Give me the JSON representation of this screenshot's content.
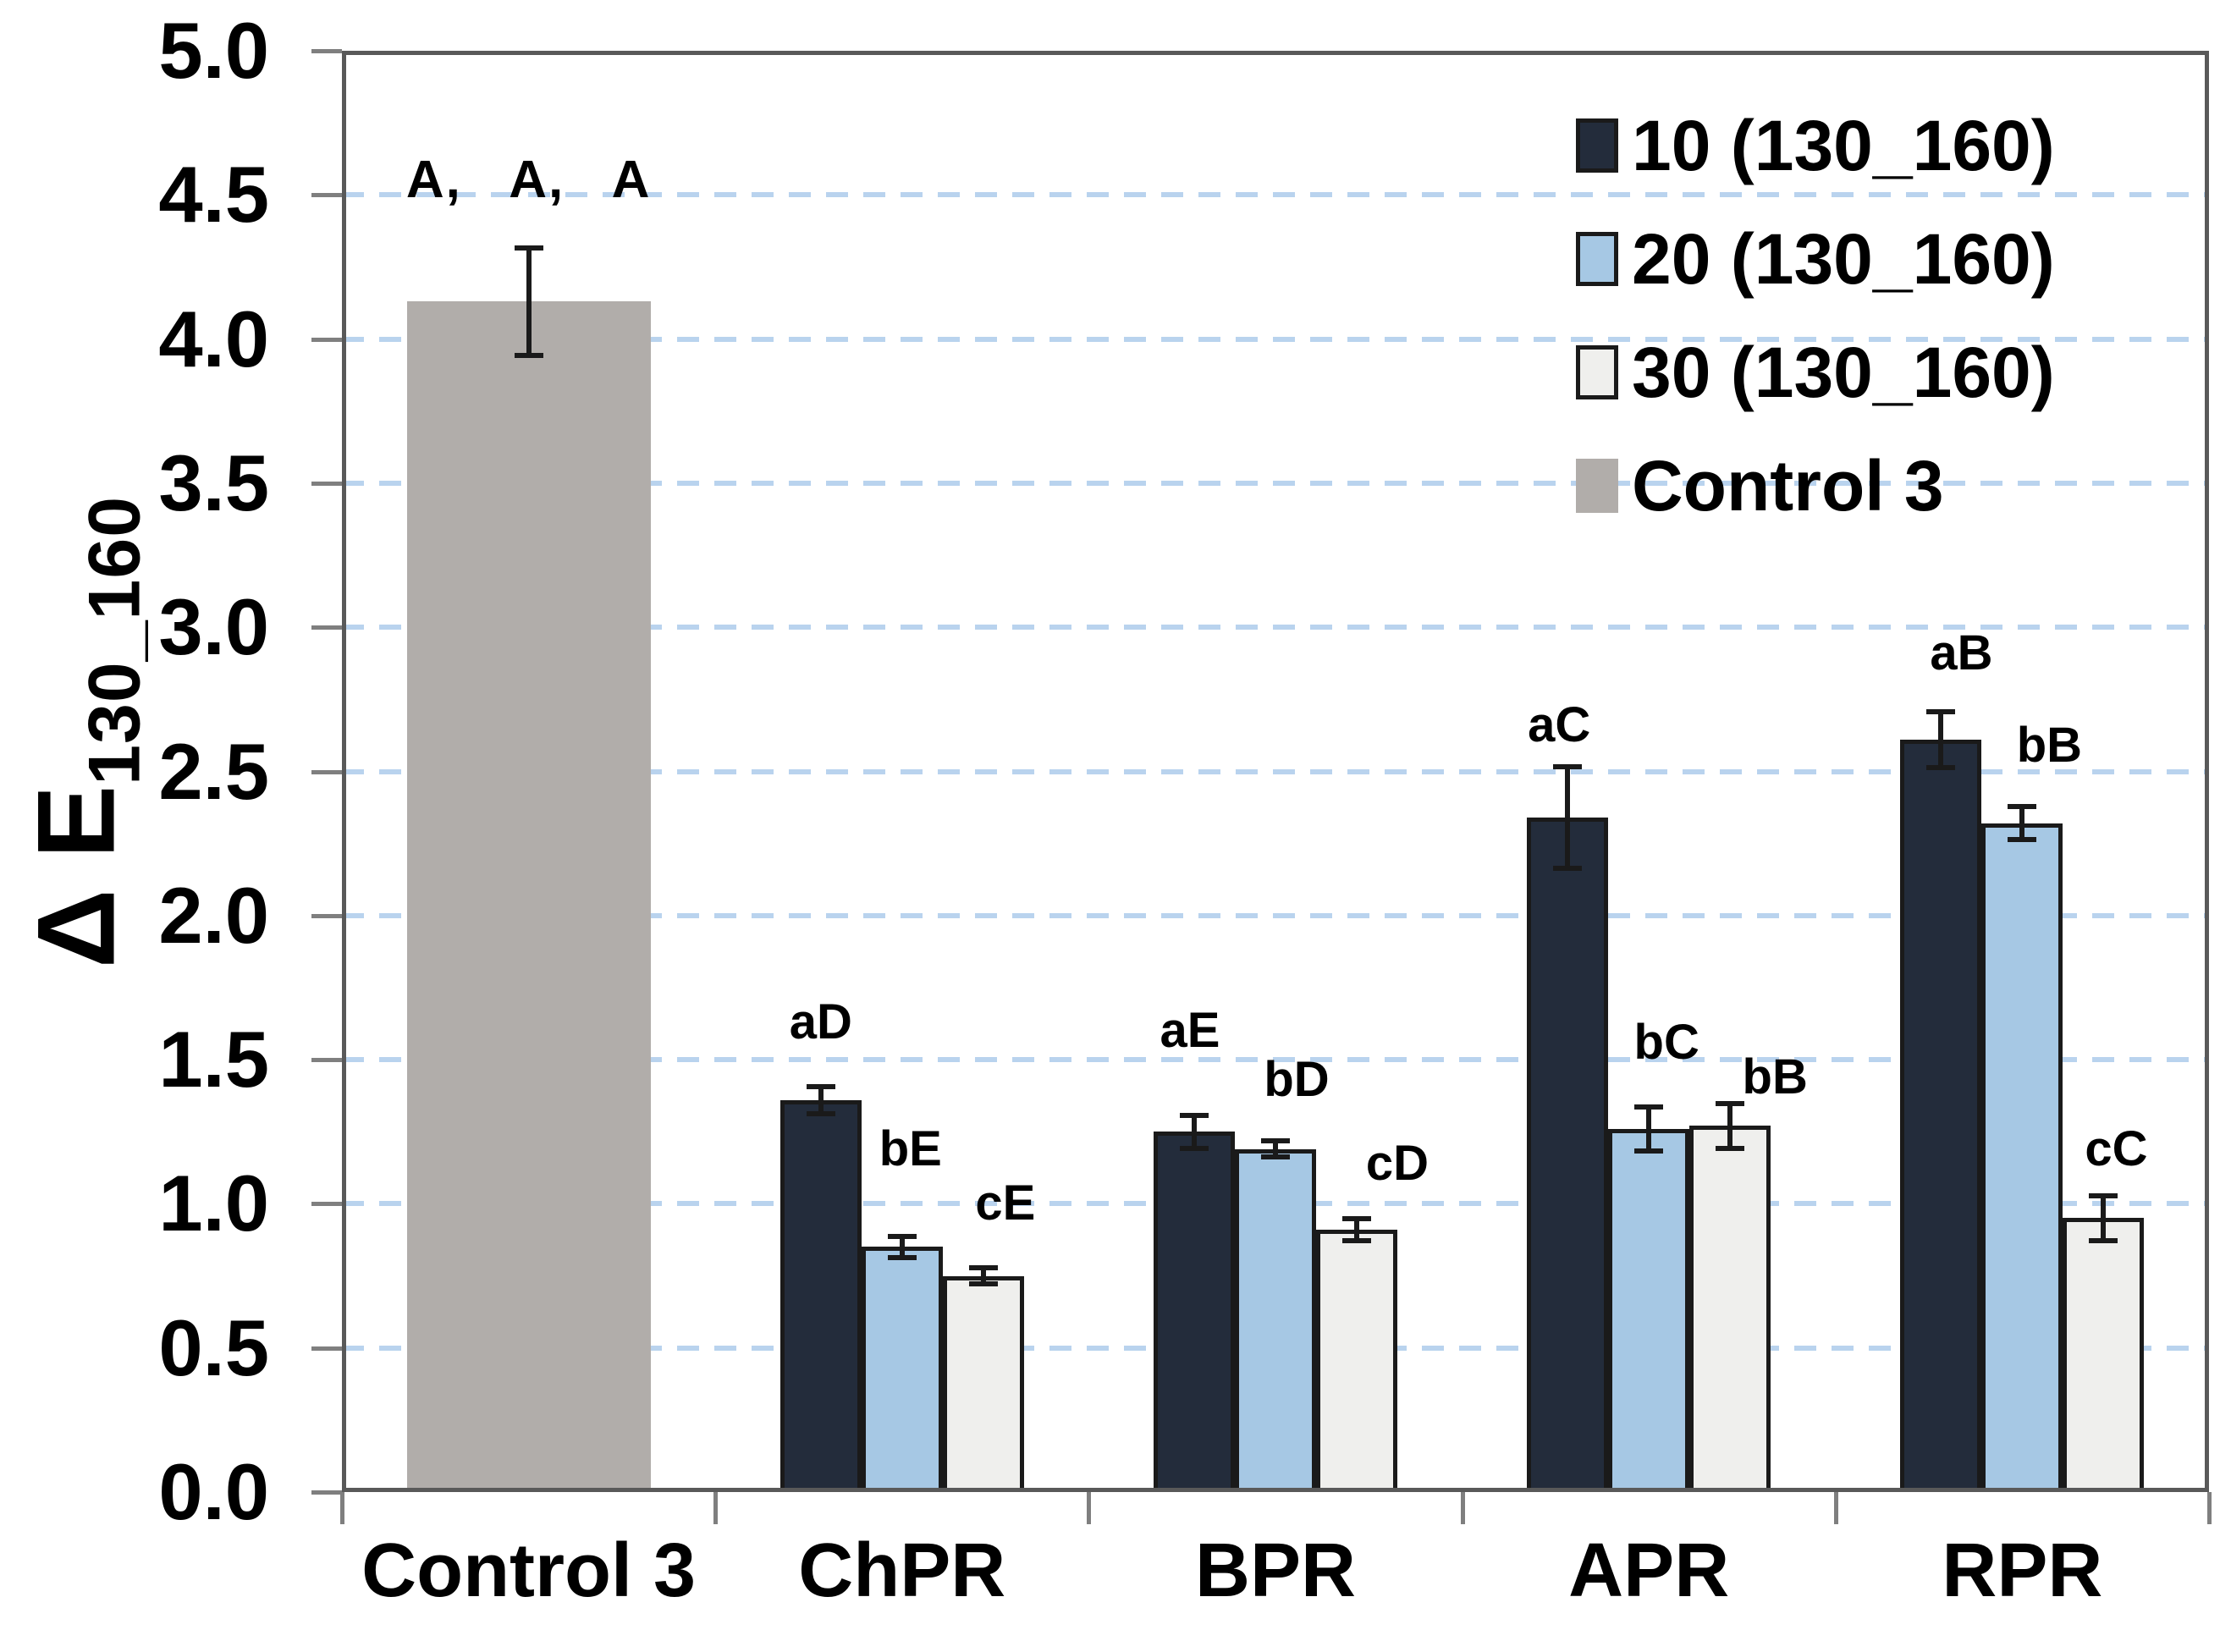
{
  "chart_data": {
    "type": "bar",
    "title": "",
    "ylabel": {
      "main": "Δ E",
      "sub": "130_160"
    },
    "ylim": [
      0.0,
      5.0
    ],
    "ytick_step": 0.5,
    "ytick_labels": [
      "5.0",
      "4.5",
      "4.0",
      "3.5",
      "3.0",
      "2.5",
      "2.0",
      "1.5",
      "1.0",
      "0.5",
      "0.0"
    ],
    "grid": {
      "style": "dashed",
      "color": "#b9d3ee",
      "interval": 0.5
    },
    "axis_color": "#595959",
    "tick_color": "#7f7f7f",
    "categories": [
      "Control 3",
      "ChPR",
      "BPR",
      "APR",
      "RPR"
    ],
    "legend_position": "top-right-inside",
    "series_legend": [
      {
        "label": "10 (130_160)",
        "fill": "#232c3b",
        "border": "#1a1a1a"
      },
      {
        "label": "20 (130_160)",
        "fill": "#a6c8e4",
        "border": "#1a1a1a"
      },
      {
        "label": "30 (130_160)",
        "fill": "#efefed",
        "border": "#1a1a1a"
      },
      {
        "label": "Control 3",
        "fill": "#b1adaa",
        "border": "#b1adaa"
      }
    ],
    "control": {
      "category": "Control 3",
      "value": 4.13,
      "error": 0.19,
      "annotation": "A,   A,   A",
      "annotation_y": 4.55
    },
    "groups": [
      {
        "category": "ChPR",
        "bars": [
          {
            "series": "10 (130_160)",
            "value": 1.36,
            "error": 0.05,
            "letter": "aD",
            "letter_y": 1.63,
            "letter_dx": 0
          },
          {
            "series": "20 (130_160)",
            "value": 0.85,
            "error": 0.04,
            "letter": "bE",
            "letter_y": 1.19,
            "letter_dx": 10
          },
          {
            "series": "30 (130_160)",
            "value": 0.75,
            "error": 0.03,
            "letter": "cE",
            "letter_y": 1.0,
            "letter_dx": 26
          }
        ]
      },
      {
        "category": "BPR",
        "bars": [
          {
            "series": "10 (130_160)",
            "value": 1.25,
            "error": 0.06,
            "letter": "aE",
            "letter_y": 1.6,
            "letter_dx": -5
          },
          {
            "series": "20 (130_160)",
            "value": 1.19,
            "error": 0.03,
            "letter": "bD",
            "letter_y": 1.43,
            "letter_dx": 25
          },
          {
            "series": "30 (130_160)",
            "value": 0.91,
            "error": 0.04,
            "letter": "cD",
            "letter_y": 1.14,
            "letter_dx": 48
          }
        ]
      },
      {
        "category": "APR",
        "bars": [
          {
            "series": "10 (130_160)",
            "value": 2.34,
            "error": 0.18,
            "letter": "aC",
            "letter_y": 2.66,
            "letter_dx": -10
          },
          {
            "series": "20 (130_160)",
            "value": 1.26,
            "error": 0.08,
            "letter": "bC",
            "letter_y": 1.56,
            "letter_dx": 21
          },
          {
            "series": "30 (130_160)",
            "value": 1.27,
            "error": 0.08,
            "letter": "bB",
            "letter_y": 1.44,
            "letter_dx": 53
          }
        ]
      },
      {
        "category": "RPR",
        "bars": [
          {
            "series": "10 (130_160)",
            "value": 2.61,
            "error": 0.1,
            "letter": "aB",
            "letter_y": 2.91,
            "letter_dx": 24
          },
          {
            "series": "20 (130_160)",
            "value": 2.32,
            "error": 0.06,
            "letter": "bB",
            "letter_y": 2.59,
            "letter_dx": 32
          },
          {
            "series": "30 (130_160)",
            "value": 0.95,
            "error": 0.08,
            "letter": "cC",
            "letter_y": 1.19,
            "letter_dx": 15
          }
        ]
      }
    ]
  }
}
